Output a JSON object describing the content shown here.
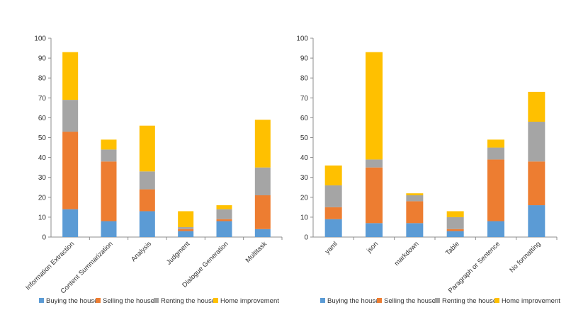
{
  "colors": {
    "Buying the house": "#5B9BD5",
    "Selling the house": "#ED7D31",
    "Renting the house": "#A5A5A5",
    "Home improvement": "#FFC000"
  },
  "chart_data": [
    {
      "type": "bar",
      "stacked": true,
      "title": "",
      "xlabel": "",
      "ylabel": "",
      "ylim": [
        0,
        100
      ],
      "yticks": [
        0,
        10,
        20,
        30,
        40,
        50,
        60,
        70,
        80,
        90,
        100
      ],
      "categories": [
        "Information Extraction",
        "Content Summarization",
        "Analysis",
        "Judgment",
        "Dialogue Generation",
        "Multitask"
      ],
      "series": [
        {
          "name": "Buying the house",
          "values": [
            14,
            8,
            13,
            3,
            8,
            4
          ]
        },
        {
          "name": "Selling the house",
          "values": [
            39,
            30,
            11,
            1,
            1,
            17
          ]
        },
        {
          "name": "Renting the house",
          "values": [
            16,
            6,
            9,
            1,
            5,
            14
          ]
        },
        {
          "name": "Home improvement",
          "values": [
            24,
            5,
            23,
            8,
            2,
            24
          ]
        }
      ],
      "legend": "bottom"
    },
    {
      "type": "bar",
      "stacked": true,
      "title": "",
      "xlabel": "",
      "ylabel": "",
      "ylim": [
        0,
        100
      ],
      "yticks": [
        0,
        10,
        20,
        30,
        40,
        50,
        60,
        70,
        80,
        90,
        100
      ],
      "categories": [
        "yaml",
        "json",
        "markdown",
        "Table",
        "Paragraph or Sentence",
        "No formatting"
      ],
      "series": [
        {
          "name": "Buying the house",
          "values": [
            9,
            7,
            7,
            3,
            8,
            16
          ]
        },
        {
          "name": "Selling the house",
          "values": [
            6,
            28,
            11,
            1,
            31,
            22
          ]
        },
        {
          "name": "Renting the house",
          "values": [
            11,
            4,
            3,
            6,
            6,
            20
          ]
        },
        {
          "name": "Home improvement",
          "values": [
            10,
            54,
            1,
            3,
            4,
            15
          ]
        }
      ],
      "legend": "bottom"
    }
  ]
}
